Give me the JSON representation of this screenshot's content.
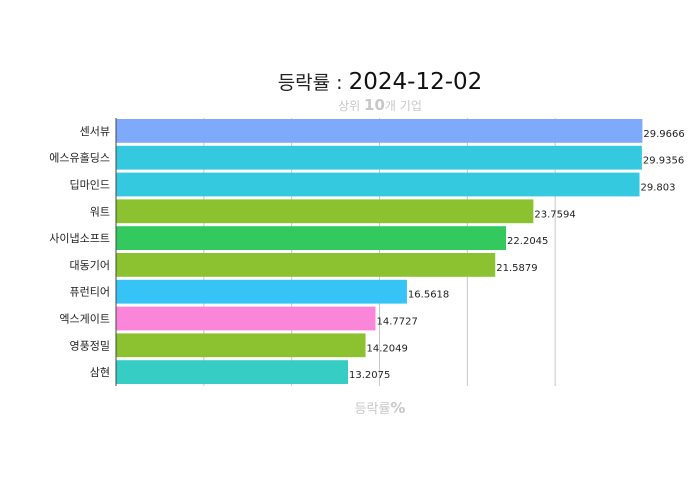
{
  "title": {
    "prefix": "등락률 : ",
    "date": "2024-12-02",
    "subtitle_pre": "상위 ",
    "subtitle_num": "10",
    "subtitle_post": "개 기업"
  },
  "xaxis": {
    "label_text": "등락률",
    "label_unit": "%"
  },
  "colors": {
    "grid": "#c8c8c8",
    "axis": "#444444",
    "title": "#111111",
    "subtitle": "#c8c8c8"
  },
  "chart_data": {
    "type": "bar",
    "orientation": "horizontal",
    "title": "등락률 : 2024-12-02",
    "subtitle": "상위 10개 기업",
    "xlabel": "등락률%",
    "ylabel": "",
    "xlim": [
      0,
      30
    ],
    "grid": true,
    "categories": [
      "센서뷰",
      "에스유홀딩스",
      "딥마인드",
      "워트",
      "사이냅소프트",
      "대동기어",
      "퓨런티어",
      "엑스게이트",
      "영풍정밀",
      "삼현"
    ],
    "values": [
      29.9666,
      29.9356,
      29.803,
      23.7594,
      22.2045,
      21.5879,
      16.5618,
      14.7727,
      14.2049,
      13.2075
    ],
    "value_labels": [
      "29.9666",
      "29.9356",
      "29.803",
      "23.7594",
      "22.2045",
      "21.5879",
      "16.5618",
      "14.7727",
      "14.2049",
      "13.2075"
    ],
    "bar_colors": [
      "#7faafb",
      "#35c9e0",
      "#35c9e0",
      "#8cc230",
      "#33c95e",
      "#8cc230",
      "#36c3f6",
      "#fb86d9",
      "#8cc230",
      "#35cdc4"
    ]
  }
}
